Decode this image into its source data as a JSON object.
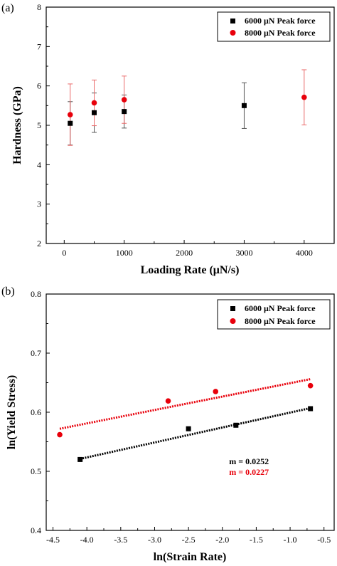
{
  "chart_data": [
    {
      "panel": "(a)",
      "type": "scatter",
      "xlabel": "Loading Rate (μN/s)",
      "ylabel": "Hardness (GPa)",
      "xlim": [
        -300,
        4500
      ],
      "ylim": [
        2,
        8
      ],
      "xticks": [
        0,
        1000,
        2000,
        3000,
        4000
      ],
      "yticks": [
        2,
        3,
        4,
        5,
        6,
        7,
        8
      ],
      "minor_xticks": 500,
      "minor_yticks": 0.5,
      "grid": false,
      "legend_position": "top-right",
      "series": [
        {
          "name": "6000 μN Peak force",
          "color": "#000000",
          "marker": "square",
          "points": [
            {
              "x": 100,
              "y": 5.05,
              "err": 0.55
            },
            {
              "x": 500,
              "y": 5.32,
              "err": 0.5
            },
            {
              "x": 1000,
              "y": 5.35,
              "err": 0.42
            },
            {
              "x": 3000,
              "y": 5.5,
              "err": 0.58
            }
          ]
        },
        {
          "name": "8000 μN Peak force",
          "color": "#e8000b",
          "marker": "circle",
          "points": [
            {
              "x": 100,
              "y": 5.27,
              "err": 0.78
            },
            {
              "x": 500,
              "y": 5.57,
              "err": 0.58
            },
            {
              "x": 1000,
              "y": 5.65,
              "err": 0.6
            },
            {
              "x": 4000,
              "y": 5.71,
              "err": 0.7
            }
          ]
        }
      ]
    },
    {
      "panel": "(b)",
      "type": "scatter",
      "xlabel": "ln(Strain Rate)",
      "ylabel": "ln(Yield Stress)",
      "xlim": [
        -4.6,
        -0.35
      ],
      "ylim": [
        0.4,
        0.8
      ],
      "xticks": [
        -4.5,
        -4.0,
        -3.5,
        -3.0,
        -2.5,
        -2.0,
        -1.5,
        -1.0,
        -0.5
      ],
      "xtick_labels": [
        "-4.5",
        "-4.0",
        "-3.5",
        "-3.0",
        "-2.5",
        "-2.0",
        "-1.5",
        "-1.0",
        "-0.5"
      ],
      "yticks": [
        0.4,
        0.5,
        0.6,
        0.7,
        0.8
      ],
      "ytick_labels": [
        "0.4",
        "0.5",
        "0.6",
        "0.7",
        "0.8"
      ],
      "minor_xticks": 0.25,
      "minor_yticks": 0.05,
      "grid": false,
      "legend_position": "top-right",
      "series": [
        {
          "name": "6000 μN Peak force",
          "color": "#000000",
          "marker": "square",
          "points": [
            {
              "x": -4.1,
              "y": 0.52
            },
            {
              "x": -2.5,
              "y": 0.572
            },
            {
              "x": -1.8,
              "y": 0.578
            },
            {
              "x": -0.7,
              "y": 0.606
            }
          ],
          "fit": {
            "x": [
              -4.1,
              -0.7
            ],
            "y": [
              0.521,
              0.607
            ]
          }
        },
        {
          "name": "8000 μN Peak force",
          "color": "#e8000b",
          "marker": "circle",
          "points": [
            {
              "x": -4.4,
              "y": 0.562
            },
            {
              "x": -2.8,
              "y": 0.619
            },
            {
              "x": -2.1,
              "y": 0.635
            },
            {
              "x": -0.7,
              "y": 0.645
            }
          ],
          "fit": {
            "x": [
              -4.4,
              -0.7
            ],
            "y": [
              0.572,
              0.656
            ]
          }
        }
      ],
      "annotations": [
        {
          "text": "m = 0.0252",
          "color": "#000000",
          "x": -1.9,
          "y": 0.512
        },
        {
          "text": "m = 0.0227",
          "color": "#e8000b",
          "x": -1.9,
          "y": 0.494
        }
      ]
    }
  ]
}
